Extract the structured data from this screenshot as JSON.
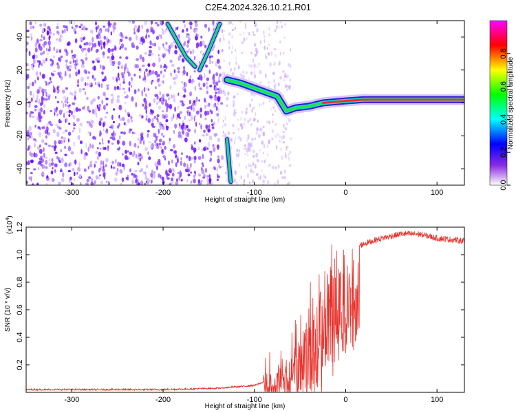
{
  "title": "C2E4.2024.326.10.21.R01",
  "chart_data": [
    {
      "type": "heatmap",
      "xlabel": "Height of straight line (km)",
      "ylabel": "Frequency (Hz)",
      "xlim": [
        -350,
        130
      ],
      "ylim": [
        -50,
        50
      ],
      "xticks": [
        -300,
        -200,
        -100,
        0,
        100
      ],
      "yticks": [
        -40,
        -20,
        0,
        20,
        40
      ],
      "colorbar": {
        "label": "Normalized spectral amplitude",
        "range": [
          0,
          1
        ],
        "ticks": [
          "0.0",
          "0.2",
          "0.4",
          "0.6",
          "0.8"
        ],
        "colors": [
          "#ffffff",
          "#8a2be2",
          "#0000ff",
          "#00ffff",
          "#00ff00",
          "#ffff00",
          "#ff0000",
          "#ff00ff"
        ]
      },
      "ridges": [
        {
          "name": "descending-branch",
          "points": [
            [
              -195,
              48
            ],
            [
              -185,
              38
            ],
            [
              -175,
              28
            ],
            [
              -165,
              22
            ]
          ]
        },
        {
          "name": "ascending-branch",
          "points": [
            [
              -160,
              20
            ],
            [
              -150,
              32
            ],
            [
              -138,
              48
            ]
          ]
        },
        {
          "name": "low-branch",
          "points": [
            [
              -130,
              -22
            ],
            [
              -128,
              -35
            ],
            [
              -126,
              -48
            ]
          ]
        },
        {
          "name": "main-trace",
          "points": [
            [
              -130,
              14
            ],
            [
              -115,
              12
            ],
            [
              -95,
              8
            ],
            [
              -75,
              4
            ],
            [
              -65,
              -5
            ],
            [
              -55,
              -3
            ],
            [
              -40,
              -2
            ],
            [
              -25,
              0
            ],
            [
              -5,
              1
            ],
            [
              20,
              2
            ],
            [
              50,
              2
            ],
            [
              80,
              2
            ],
            [
              110,
              2
            ],
            [
              130,
              2
            ]
          ]
        }
      ]
    },
    {
      "type": "line",
      "xlabel": "Height of straight line (km)",
      "ylabel": "SNR (10 * v/v)",
      "scale_label": "(x10",
      "scale_exp": "4",
      "xlim": [
        -350,
        130
      ],
      "ylim": [
        0,
        1.2
      ],
      "xticks": [
        -300,
        -200,
        -100,
        0,
        100
      ],
      "yticks": [
        0.2,
        0.4,
        0.6,
        0.8,
        1.0,
        1.2
      ],
      "ytick_labels": [
        "0.2",
        "0.4",
        "0.6",
        "0.8",
        "1.0",
        "1.2"
      ],
      "series": [
        {
          "color": "#e8312b",
          "envelope": [
            [
              -350,
              0.02
            ],
            [
              -200,
              0.02
            ],
            [
              -140,
              0.03
            ],
            [
              -100,
              0.05
            ],
            [
              -80,
              0.1
            ],
            [
              -60,
              0.25
            ],
            [
              -50,
              0.4
            ],
            [
              -40,
              0.55
            ],
            [
              -30,
              0.7
            ],
            [
              -20,
              0.82
            ],
            [
              -10,
              0.95
            ],
            [
              0,
              1.0
            ],
            [
              10,
              1.05
            ],
            [
              20,
              1.08
            ],
            [
              40,
              1.12
            ],
            [
              60,
              1.15
            ],
            [
              80,
              1.15
            ],
            [
              100,
              1.12
            ],
            [
              130,
              1.1
            ]
          ]
        }
      ]
    }
  ]
}
